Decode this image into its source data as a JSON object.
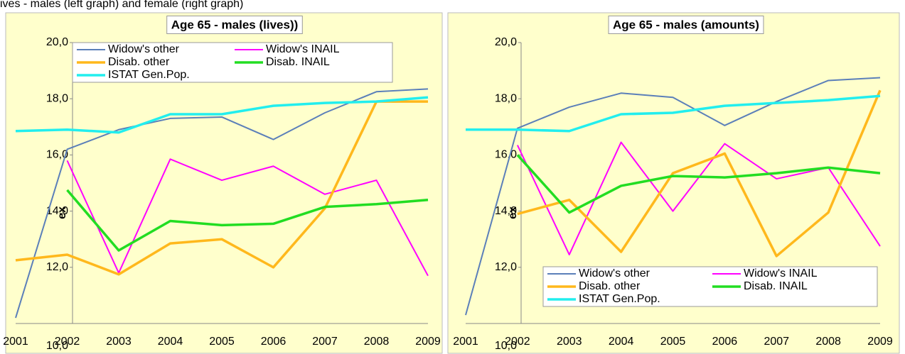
{
  "caption": "ives - males (left graph) and female (right graph)",
  "chart_data": [
    {
      "type": "line",
      "title": "Age 65 - males (lives))",
      "y_label": "ex",
      "categories": [
        "2001",
        "2002",
        "2003",
        "2004",
        "2005",
        "2006",
        "2007",
        "2008",
        "2009"
      ],
      "ylim": [
        10,
        20
      ],
      "yticks": [
        {
          "value": 10,
          "label": "10,0"
        },
        {
          "value": 12,
          "label": "12,0"
        },
        {
          "value": 14,
          "label": "14,0"
        },
        {
          "value": 16,
          "label": "16,0"
        },
        {
          "value": 18,
          "label": "18,0"
        },
        {
          "value": 20,
          "label": "20,0"
        }
      ],
      "grid": false,
      "legend": "upper left",
      "series": [
        {
          "name": "Widow's other",
          "color": "#5b7fb9",
          "values": [
            10.2,
            16.2,
            16.9,
            17.3,
            17.35,
            16.55,
            17.5,
            18.25,
            18.35
          ]
        },
        {
          "name": "Widow's INAIL",
          "color": "#ff00ff",
          "values": [
            null,
            15.8,
            11.8,
            15.85,
            15.1,
            15.6,
            14.6,
            15.1,
            11.7
          ]
        },
        {
          "name": "Disab. other",
          "color": "#ffb81c",
          "values": [
            12.25,
            12.45,
            11.75,
            12.85,
            13.0,
            12.0,
            14.1,
            17.9,
            17.9
          ]
        },
        {
          "name": "Disab. INAIL",
          "color": "#22dd22",
          "values": [
            null,
            14.75,
            12.6,
            13.65,
            13.5,
            13.55,
            14.15,
            14.25,
            14.4
          ]
        },
        {
          "name": "ISTAT Gen.Pop.",
          "color": "#22eeee",
          "values": [
            16.85,
            16.9,
            16.8,
            17.45,
            17.45,
            17.75,
            17.85,
            17.9,
            18.05
          ]
        }
      ]
    },
    {
      "type": "line",
      "title": "Age 65 - males (amounts)",
      "y_label": "ex",
      "categories": [
        "2001",
        "2002",
        "2003",
        "2004",
        "2005",
        "2006",
        "2007",
        "2008",
        "2009"
      ],
      "ylim": [
        10,
        20
      ],
      "yticks": [
        {
          "value": 10,
          "label": "10,0"
        },
        {
          "value": 12,
          "label": "12,0"
        },
        {
          "value": 14,
          "label": "14,0"
        },
        {
          "value": 16,
          "label": "16,0"
        },
        {
          "value": 18,
          "label": "18,0"
        },
        {
          "value": 20,
          "label": "20,0"
        }
      ],
      "grid": false,
      "legend": "lower left",
      "series": [
        {
          "name": "Widow's other",
          "color": "#5b7fb9",
          "values": [
            10.3,
            16.95,
            17.7,
            18.2,
            18.05,
            17.05,
            17.9,
            18.65,
            18.75
          ]
        },
        {
          "name": "Widow's INAIL",
          "color": "#ff00ff",
          "values": [
            null,
            16.35,
            12.45,
            16.45,
            14.0,
            16.4,
            15.15,
            15.55,
            12.75
          ]
        },
        {
          "name": "Disab. other",
          "color": "#ffb81c",
          "values": [
            null,
            13.9,
            14.4,
            12.55,
            15.35,
            16.05,
            12.4,
            13.95,
            18.3
          ]
        },
        {
          "name": "Disab. INAIL",
          "color": "#22dd22",
          "values": [
            null,
            16.0,
            13.95,
            14.9,
            15.25,
            15.2,
            15.35,
            15.55,
            15.35
          ]
        },
        {
          "name": "ISTAT Gen.Pop.",
          "color": "#22eeee",
          "values": [
            16.9,
            16.9,
            16.85,
            17.45,
            17.5,
            17.75,
            17.85,
            17.95,
            18.1
          ]
        }
      ]
    }
  ]
}
